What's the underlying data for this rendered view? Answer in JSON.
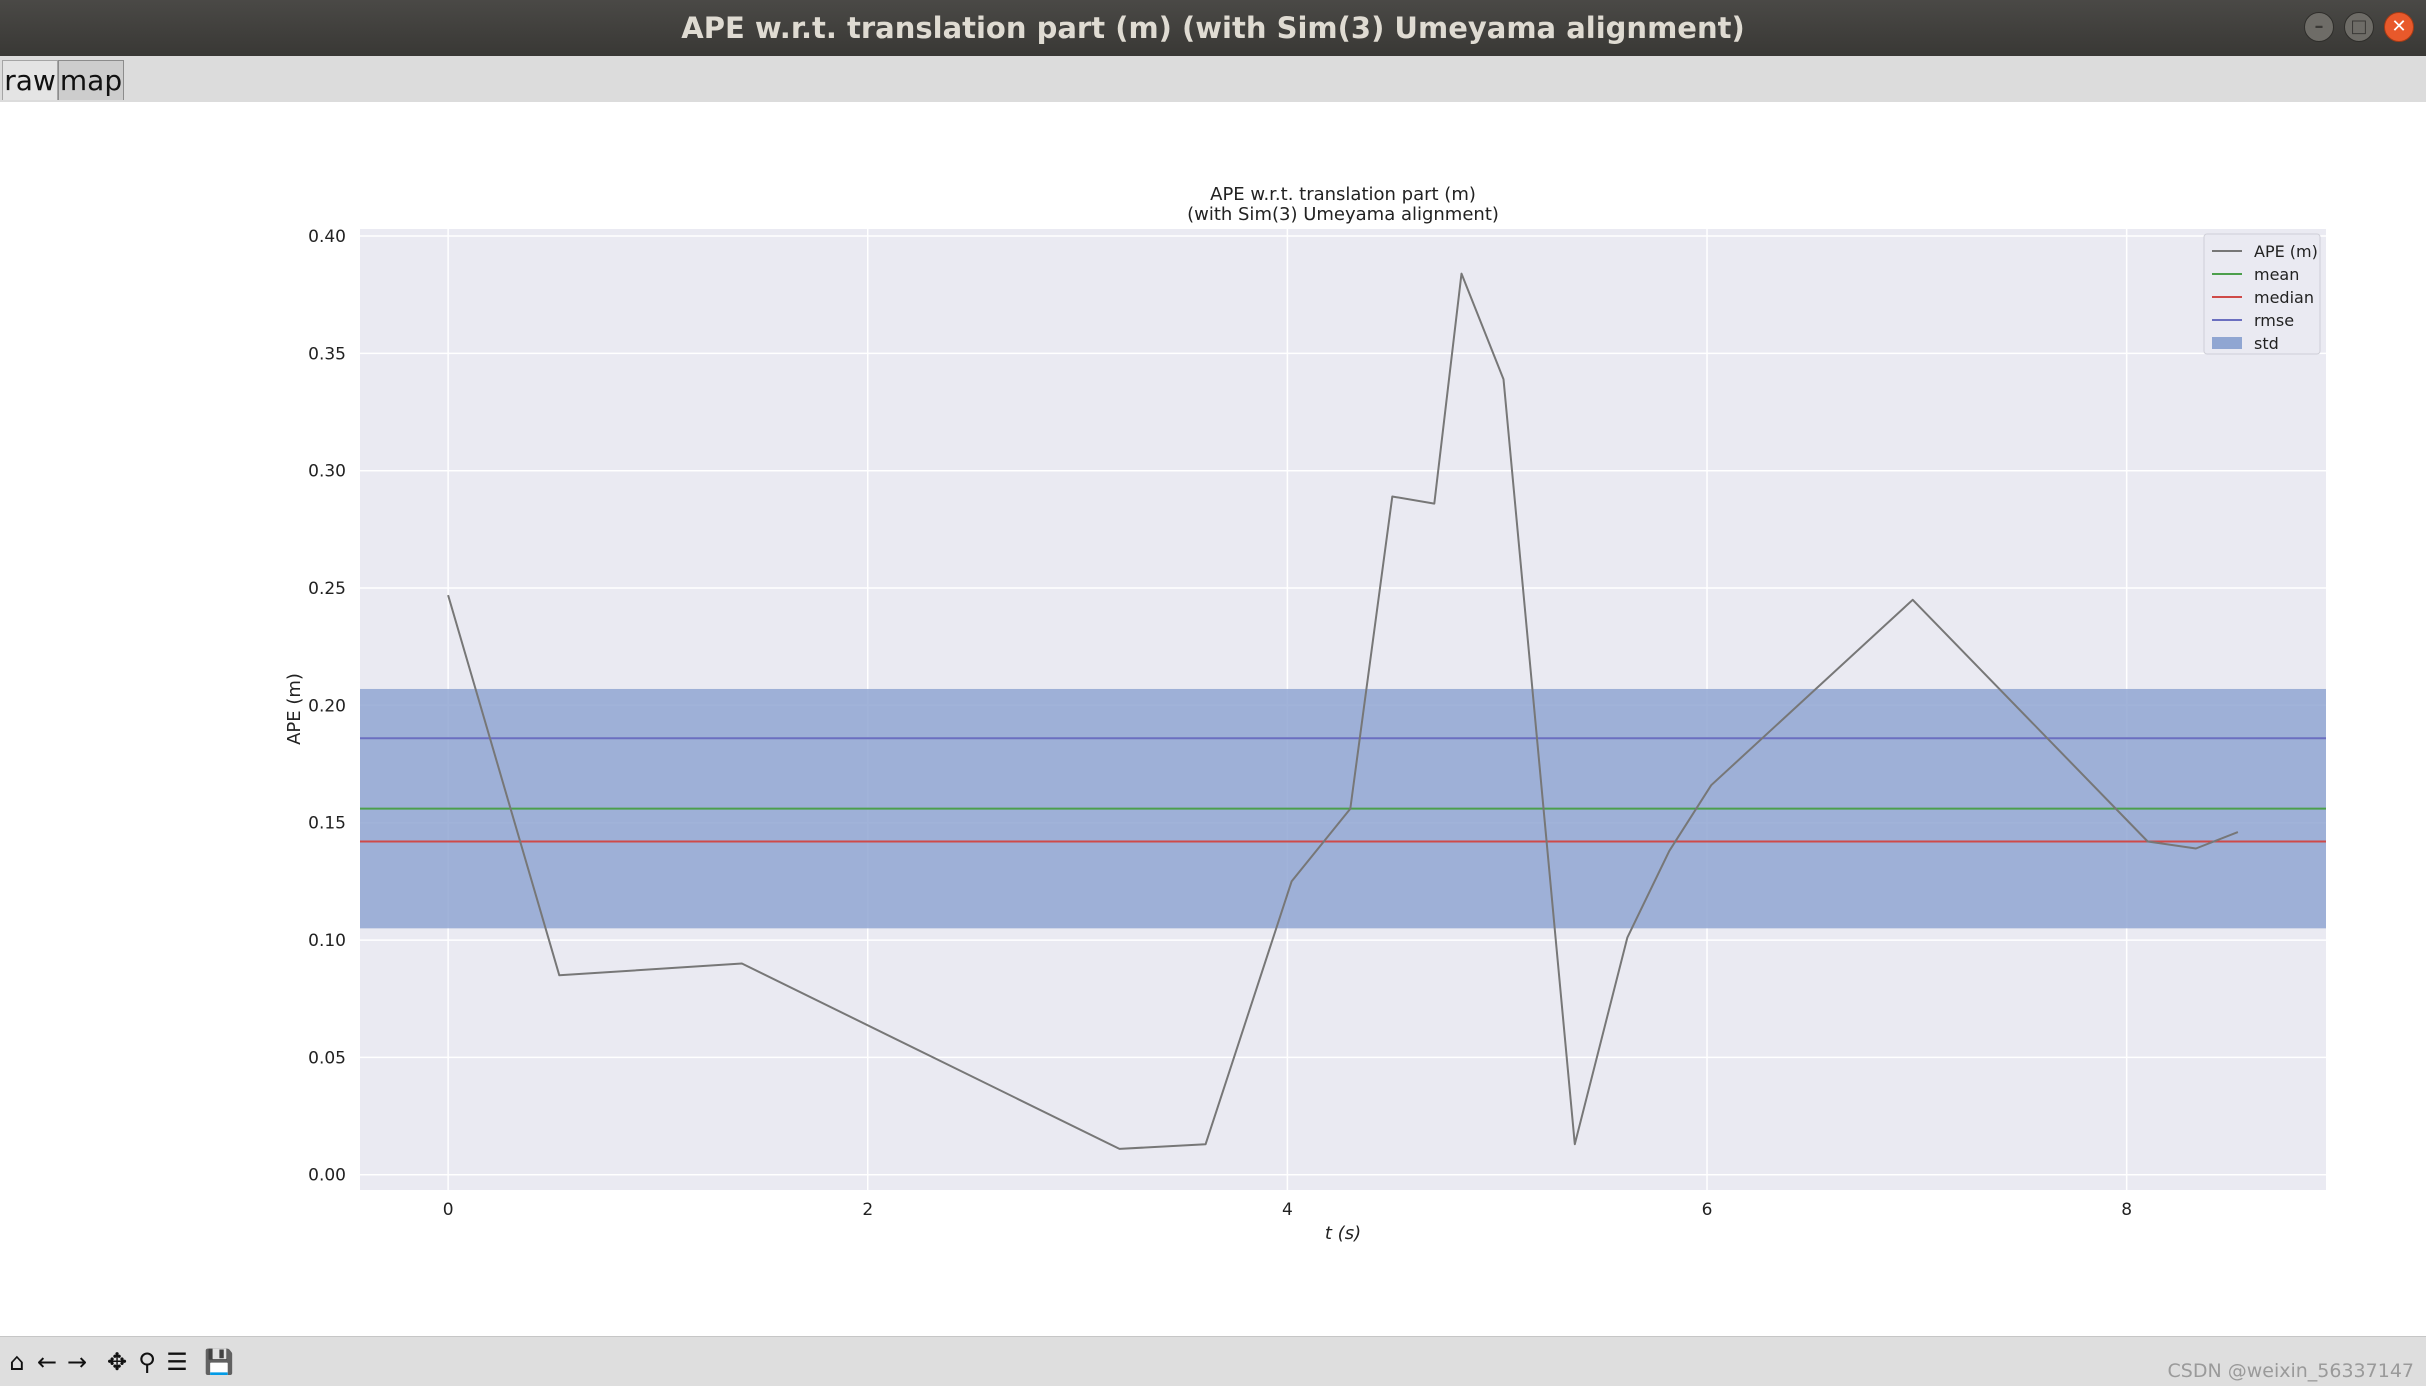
{
  "window": {
    "title": "APE w.r.t. translation part (m) (with Sim(3) Umeyama alignment)",
    "controls": [
      "minimize-icon",
      "maximize-icon",
      "close-icon"
    ]
  },
  "tabs": [
    {
      "label": "raw",
      "active": false
    },
    {
      "label": "map",
      "active": true
    }
  ],
  "toolbar": {
    "icons": [
      "home-icon",
      "back-arrow-icon",
      "forward-arrow-icon",
      "pan-icon",
      "zoom-icon",
      "configure-subplots-icon",
      "save-icon"
    ]
  },
  "watermark": "CSDN @weixin_56337147",
  "colors": {
    "axes_bg": "#eaeaf2",
    "ape": "#777777",
    "mean": "#4c9f4c",
    "median": "#cf4a48",
    "rmse": "#6b6fc0",
    "std": "#90a6d2"
  },
  "chart_data": {
    "type": "line",
    "title": [
      "APE w.r.t. translation part (m)",
      "(with Sim(3) Umeyama alignment)"
    ],
    "xlabel": "t (s)",
    "ylabel": "APE (m)",
    "xlim": [
      -0.42,
      8.95
    ],
    "ylim": [
      -0.0065,
      0.403
    ],
    "xticks": [
      0,
      2,
      4,
      6,
      8
    ],
    "xtick_labels": [
      "0",
      "2",
      "4",
      "6",
      "8"
    ],
    "yticks": [
      0.0,
      0.05,
      0.1,
      0.15,
      0.2,
      0.25,
      0.3,
      0.35,
      0.4
    ],
    "ytick_labels": [
      "0.00",
      "0.05",
      "0.10",
      "0.15",
      "0.20",
      "0.25",
      "0.30",
      "0.35",
      "0.40"
    ],
    "grid": true,
    "legend_position": "top-right",
    "series": [
      {
        "name": "APE (m)",
        "x": [
          0.0,
          0.53,
          1.4,
          3.2,
          3.61,
          4.02,
          4.3,
          4.5,
          4.7,
          4.83,
          5.03,
          5.37,
          5.62,
          5.82,
          6.02,
          6.98,
          8.1,
          8.33,
          8.53
        ],
        "y": [
          0.247,
          0.085,
          0.09,
          0.011,
          0.013,
          0.125,
          0.156,
          0.289,
          0.286,
          0.384,
          0.339,
          0.013,
          0.101,
          0.138,
          0.166,
          0.245,
          0.142,
          0.139,
          0.146
        ]
      }
    ],
    "stats": [
      {
        "name": "mean",
        "value": 0.156
      },
      {
        "name": "median",
        "value": 0.142
      },
      {
        "name": "rmse",
        "value": 0.186
      }
    ],
    "std_band": {
      "name": "std",
      "lower": 0.105,
      "upper": 0.207
    }
  }
}
